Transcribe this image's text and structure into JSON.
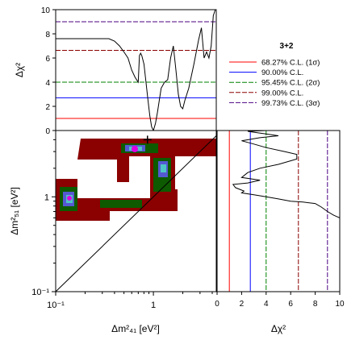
{
  "legend": {
    "title": "3+2",
    "placement": "top-right",
    "entries": [
      {
        "label": "68.27% C.L. (1σ)",
        "color": "#ff0000",
        "dashed": false
      },
      {
        "label": "90.00% C.L.",
        "color": "#0000ff",
        "dashed": false
      },
      {
        "label": "95.45% C.L. (2σ)",
        "color": "#008000",
        "dashed": true
      },
      {
        "label": "99.00% C.L.",
        "color": "#8b0000",
        "dashed": true
      },
      {
        "label": "99.73% C.L. (3σ)",
        "color": "#4b0082",
        "dashed": true
      }
    ]
  },
  "cl_levels": [
    1.0,
    2.71,
    4.0,
    6.63,
    9.0
  ],
  "contour_colors": [
    "#8b0000",
    "#006400",
    "#5a5adc",
    "#4fc6c6",
    "#e000e0"
  ],
  "chart_data": [
    {
      "name": "top-profile",
      "type": "line",
      "xlabel": "",
      "ylabel": "Δχ²",
      "xlim": [
        0.1,
        4.4
      ],
      "xscale": "log",
      "ylim": [
        0,
        10
      ],
      "yticks": [
        "0",
        "2",
        "4",
        "6",
        "8",
        "10"
      ],
      "x": [
        0.1,
        0.35,
        0.4,
        0.45,
        0.5,
        0.55,
        0.6,
        0.65,
        0.7,
        0.72,
        0.74,
        0.76,
        0.8,
        0.84,
        0.88,
        0.92,
        0.96,
        1.0,
        1.05,
        1.1,
        1.15,
        1.2,
        1.3,
        1.4,
        1.5,
        1.6,
        1.7,
        1.8,
        1.9,
        2.0,
        2.1,
        2.3,
        2.6,
        2.9,
        3.1,
        3.3,
        3.5,
        3.7,
        3.9,
        4.1,
        4.3
      ],
      "y": [
        7.6,
        7.6,
        7.4,
        7.0,
        6.5,
        6.0,
        5.0,
        4.4,
        4.0,
        6.2,
        6.4,
        6.2,
        5.5,
        4.0,
        2.5,
        1.2,
        0.3,
        0.0,
        0.6,
        1.5,
        2.5,
        3.5,
        4.0,
        4.2,
        6.0,
        7.0,
        5.0,
        3.0,
        2.0,
        1.8,
        2.5,
        3.5,
        5.5,
        7.5,
        8.5,
        6.0,
        6.5,
        6.0,
        7.0,
        9.5,
        10.0
      ]
    },
    {
      "name": "side-profile",
      "type": "line",
      "xlabel": "Δχ²",
      "ylabel": "",
      "xlim": [
        0,
        10
      ],
      "xticks": [
        "0",
        "2",
        "4",
        "6",
        "8",
        "10"
      ],
      "ylim": [
        0.1,
        5
      ],
      "yscale": "log",
      "x": [
        10.0,
        9.5,
        9.0,
        8.5,
        8.0,
        7.0,
        6.0,
        5.0,
        4.0,
        3.0,
        2.0,
        2.2,
        1.5,
        1.3,
        2.5,
        3.5,
        2.0,
        2.5,
        3.5,
        5.0,
        6.5,
        6.5,
        5.5,
        4.0,
        3.0,
        2.0,
        3.5,
        5.0,
        4.0,
        3.0,
        2.5,
        4.0
      ],
      "y": [
        0.6,
        0.64,
        0.7,
        0.78,
        0.85,
        0.88,
        0.9,
        0.95,
        1.0,
        1.05,
        1.1,
        1.15,
        1.25,
        1.35,
        1.4,
        1.5,
        1.6,
        1.8,
        2.0,
        2.2,
        2.5,
        2.8,
        3.0,
        3.3,
        3.6,
        3.9,
        4.2,
        4.4,
        4.6,
        4.8,
        4.9,
        5.0
      ]
    },
    {
      "name": "main-contour",
      "type": "heatmap",
      "xlabel": "Δm²₄₁   [eV²]",
      "ylabel": "Δm²₅₁   [eV²]",
      "xlim": [
        0.1,
        4.4
      ],
      "ylim": [
        0.1,
        5
      ],
      "xscale": "log",
      "yscale": "log",
      "xticks": [
        {
          "value": 0.1,
          "label": "10⁻¹"
        },
        {
          "value": 1,
          "label": "1"
        }
      ],
      "yticks": [
        {
          "value": 0.1,
          "label": "10⁻¹"
        },
        {
          "value": 1,
          "label": "1"
        }
      ],
      "best_fit": [
        0.87,
        4.0
      ]
    }
  ]
}
